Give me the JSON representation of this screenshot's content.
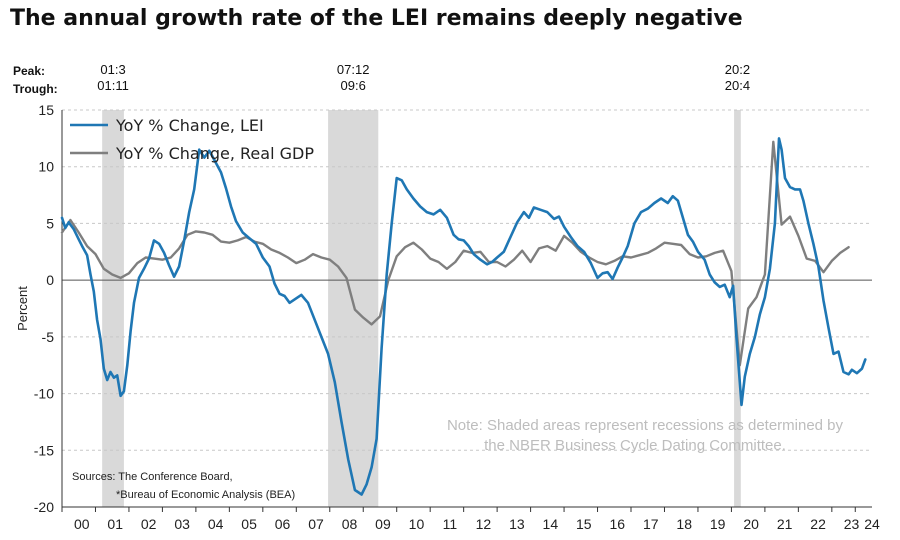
{
  "title": "The annual growth rate of the LEI remains deeply negative",
  "peak_label": "Peak:",
  "trough_label": "Trough:",
  "chart_data": {
    "type": "line",
    "title": "The annual growth rate of the LEI remains deeply negative",
    "ylabel": "Percent",
    "xlabel": "",
    "ylim": [
      -20,
      15
    ],
    "yticks": [
      15,
      10,
      5,
      0,
      -5,
      -10,
      -15,
      -20
    ],
    "xlim": [
      2000,
      2024.2
    ],
    "xticks": [
      {
        "x": 2000.5,
        "label": "00"
      },
      {
        "x": 2001.5,
        "label": "01"
      },
      {
        "x": 2002.5,
        "label": "02"
      },
      {
        "x": 2003.5,
        "label": "03"
      },
      {
        "x": 2004.5,
        "label": "04"
      },
      {
        "x": 2005.5,
        "label": "05"
      },
      {
        "x": 2006.5,
        "label": "06"
      },
      {
        "x": 2007.5,
        "label": "07"
      },
      {
        "x": 2008.5,
        "label": "08"
      },
      {
        "x": 2009.5,
        "label": "09"
      },
      {
        "x": 2010.5,
        "label": "10"
      },
      {
        "x": 2011.5,
        "label": "11"
      },
      {
        "x": 2012.5,
        "label": "12"
      },
      {
        "x": 2013.5,
        "label": "13"
      },
      {
        "x": 2014.5,
        "label": "14"
      },
      {
        "x": 2015.5,
        "label": "15"
      },
      {
        "x": 2016.5,
        "label": "16"
      },
      {
        "x": 2017.5,
        "label": "17"
      },
      {
        "x": 2018.5,
        "label": "18"
      },
      {
        "x": 2019.5,
        "label": "19"
      },
      {
        "x": 2020.5,
        "label": "20"
      },
      {
        "x": 2021.5,
        "label": "21"
      },
      {
        "x": 2022.5,
        "label": "22"
      },
      {
        "x": 2023.5,
        "label": "23"
      },
      {
        "x": 2024.2,
        "label": "24"
      }
    ],
    "recessions": [
      {
        "start": 2001.2,
        "end": 2001.85,
        "peak_label": "01:3",
        "trough_label": "01:11"
      },
      {
        "start": 2007.95,
        "end": 2009.45,
        "peak_label": "07:12",
        "trough_label": "09:6"
      },
      {
        "start": 2020.08,
        "end": 2020.28,
        "peak_label": "20:2",
        "trough_label": "20:4"
      }
    ],
    "series": [
      {
        "name": "YoY % Change, LEI",
        "color": "#1f77b4",
        "points": [
          [
            2000.0,
            5.5
          ],
          [
            2000.1,
            4.6
          ],
          [
            2000.2,
            5.1
          ],
          [
            2000.35,
            4.5
          ],
          [
            2000.5,
            3.6
          ],
          [
            2000.6,
            3.0
          ],
          [
            2000.75,
            2.2
          ],
          [
            2000.85,
            0.5
          ],
          [
            2000.95,
            -1.0
          ],
          [
            2001.05,
            -3.5
          ],
          [
            2001.15,
            -5.2
          ],
          [
            2001.25,
            -7.8
          ],
          [
            2001.35,
            -8.8
          ],
          [
            2001.45,
            -8.1
          ],
          [
            2001.55,
            -8.6
          ],
          [
            2001.65,
            -8.4
          ],
          [
            2001.75,
            -10.2
          ],
          [
            2001.85,
            -9.8
          ],
          [
            2001.95,
            -7.5
          ],
          [
            2002.05,
            -4.5
          ],
          [
            2002.15,
            -2.0
          ],
          [
            2002.3,
            0.2
          ],
          [
            2002.45,
            1.0
          ],
          [
            2002.6,
            1.9
          ],
          [
            2002.75,
            3.5
          ],
          [
            2002.9,
            3.2
          ],
          [
            2003.05,
            2.4
          ],
          [
            2003.2,
            1.3
          ],
          [
            2003.35,
            0.3
          ],
          [
            2003.5,
            1.2
          ],
          [
            2003.65,
            3.5
          ],
          [
            2003.8,
            6.0
          ],
          [
            2003.95,
            8.0
          ],
          [
            2004.1,
            11.5
          ],
          [
            2004.25,
            10.8
          ],
          [
            2004.4,
            11.4
          ],
          [
            2004.55,
            10.6
          ],
          [
            2004.75,
            9.5
          ],
          [
            2004.9,
            8.1
          ],
          [
            2005.05,
            6.5
          ],
          [
            2005.2,
            5.2
          ],
          [
            2005.4,
            4.2
          ],
          [
            2005.6,
            3.7
          ],
          [
            2005.8,
            3.2
          ],
          [
            2006.0,
            2.0
          ],
          [
            2006.2,
            1.2
          ],
          [
            2006.35,
            -0.3
          ],
          [
            2006.5,
            -1.2
          ],
          [
            2006.65,
            -1.4
          ],
          [
            2006.8,
            -2.0
          ],
          [
            2006.95,
            -1.7
          ],
          [
            2007.15,
            -1.3
          ],
          [
            2007.35,
            -2.0
          ],
          [
            2007.55,
            -3.5
          ],
          [
            2007.75,
            -5.0
          ],
          [
            2007.95,
            -6.5
          ],
          [
            2008.15,
            -9.0
          ],
          [
            2008.35,
            -12.5
          ],
          [
            2008.55,
            -15.8
          ],
          [
            2008.75,
            -18.5
          ],
          [
            2008.95,
            -18.9
          ],
          [
            2009.1,
            -18.0
          ],
          [
            2009.25,
            -16.5
          ],
          [
            2009.4,
            -14.0
          ],
          [
            2009.55,
            -6.0
          ],
          [
            2009.7,
            0.5
          ],
          [
            2009.85,
            5.0
          ],
          [
            2010.0,
            9.0
          ],
          [
            2010.15,
            8.8
          ],
          [
            2010.3,
            8.0
          ],
          [
            2010.5,
            7.2
          ],
          [
            2010.7,
            6.5
          ],
          [
            2010.9,
            6.0
          ],
          [
            2011.1,
            5.8
          ],
          [
            2011.3,
            6.2
          ],
          [
            2011.5,
            5.5
          ],
          [
            2011.7,
            4.0
          ],
          [
            2011.85,
            3.6
          ],
          [
            2012.0,
            3.5
          ],
          [
            2012.15,
            3.0
          ],
          [
            2012.3,
            2.3
          ],
          [
            2012.5,
            1.8
          ],
          [
            2012.7,
            1.4
          ],
          [
            2012.85,
            1.6
          ],
          [
            2013.0,
            2.0
          ],
          [
            2013.2,
            2.5
          ],
          [
            2013.4,
            3.8
          ],
          [
            2013.6,
            5.1
          ],
          [
            2013.8,
            6.0
          ],
          [
            2013.95,
            5.5
          ],
          [
            2014.1,
            6.4
          ],
          [
            2014.3,
            6.2
          ],
          [
            2014.5,
            6.0
          ],
          [
            2014.7,
            5.4
          ],
          [
            2014.85,
            5.6
          ],
          [
            2015.0,
            4.7
          ],
          [
            2015.2,
            3.8
          ],
          [
            2015.4,
            3.0
          ],
          [
            2015.6,
            2.5
          ],
          [
            2015.8,
            1.5
          ],
          [
            2016.0,
            0.2
          ],
          [
            2016.15,
            0.6
          ],
          [
            2016.3,
            0.7
          ],
          [
            2016.45,
            0.1
          ],
          [
            2016.6,
            1.1
          ],
          [
            2016.75,
            2.0
          ],
          [
            2016.9,
            3.0
          ],
          [
            2017.1,
            5.0
          ],
          [
            2017.3,
            6.0
          ],
          [
            2017.5,
            6.3
          ],
          [
            2017.7,
            6.8
          ],
          [
            2017.9,
            7.2
          ],
          [
            2018.1,
            6.8
          ],
          [
            2018.25,
            7.4
          ],
          [
            2018.4,
            7.0
          ],
          [
            2018.55,
            5.5
          ],
          [
            2018.7,
            4.0
          ],
          [
            2018.85,
            3.4
          ],
          [
            2019.0,
            2.5
          ],
          [
            2019.2,
            1.8
          ],
          [
            2019.35,
            0.5
          ],
          [
            2019.5,
            -0.2
          ],
          [
            2019.65,
            -0.6
          ],
          [
            2019.8,
            -0.4
          ],
          [
            2019.95,
            -1.5
          ],
          [
            2020.05,
            -0.5
          ],
          [
            2020.15,
            -5.0
          ],
          [
            2020.3,
            -11.0
          ],
          [
            2020.4,
            -8.5
          ],
          [
            2020.55,
            -6.5
          ],
          [
            2020.7,
            -5.0
          ],
          [
            2020.85,
            -3.0
          ],
          [
            2021.0,
            -1.5
          ],
          [
            2021.15,
            1.0
          ],
          [
            2021.3,
            5.0
          ],
          [
            2021.42,
            12.5
          ],
          [
            2021.5,
            11.5
          ],
          [
            2021.6,
            9.0
          ],
          [
            2021.75,
            8.2
          ],
          [
            2021.9,
            8.0
          ],
          [
            2022.05,
            8.0
          ],
          [
            2022.15,
            7.0
          ],
          [
            2022.3,
            5.0
          ],
          [
            2022.45,
            3.2
          ],
          [
            2022.6,
            1.2
          ],
          [
            2022.75,
            -1.8
          ],
          [
            2022.9,
            -4.2
          ],
          [
            2023.05,
            -6.5
          ],
          [
            2023.2,
            -6.3
          ],
          [
            2023.35,
            -8.1
          ],
          [
            2023.5,
            -8.3
          ],
          [
            2023.6,
            -7.9
          ],
          [
            2023.75,
            -8.2
          ],
          [
            2023.9,
            -7.8
          ],
          [
            2024.0,
            -7.0
          ]
        ]
      },
      {
        "name": "YoY % Change, Real GDP",
        "color": "#7f7f7f",
        "points": [
          [
            2000.0,
            4.2
          ],
          [
            2000.25,
            5.3
          ],
          [
            2000.5,
            4.2
          ],
          [
            2000.75,
            3.0
          ],
          [
            2001.0,
            2.3
          ],
          [
            2001.25,
            1.0
          ],
          [
            2001.5,
            0.5
          ],
          [
            2001.75,
            0.2
          ],
          [
            2002.0,
            0.6
          ],
          [
            2002.25,
            1.5
          ],
          [
            2002.5,
            2.0
          ],
          [
            2002.75,
            1.9
          ],
          [
            2003.0,
            1.8
          ],
          [
            2003.25,
            2.0
          ],
          [
            2003.5,
            2.8
          ],
          [
            2003.75,
            4.0
          ],
          [
            2004.0,
            4.3
          ],
          [
            2004.25,
            4.2
          ],
          [
            2004.5,
            4.0
          ],
          [
            2004.75,
            3.4
          ],
          [
            2005.0,
            3.3
          ],
          [
            2005.25,
            3.5
          ],
          [
            2005.5,
            3.8
          ],
          [
            2005.75,
            3.4
          ],
          [
            2006.0,
            3.2
          ],
          [
            2006.25,
            2.7
          ],
          [
            2006.5,
            2.4
          ],
          [
            2006.75,
            2.0
          ],
          [
            2007.0,
            1.5
          ],
          [
            2007.25,
            1.8
          ],
          [
            2007.5,
            2.3
          ],
          [
            2007.75,
            2.0
          ],
          [
            2008.0,
            1.8
          ],
          [
            2008.25,
            1.2
          ],
          [
            2008.5,
            0.2
          ],
          [
            2008.75,
            -2.6
          ],
          [
            2009.0,
            -3.3
          ],
          [
            2009.25,
            -3.9
          ],
          [
            2009.5,
            -3.2
          ],
          [
            2009.75,
            0.0
          ],
          [
            2010.0,
            2.1
          ],
          [
            2010.25,
            2.9
          ],
          [
            2010.5,
            3.3
          ],
          [
            2010.75,
            2.7
          ],
          [
            2011.0,
            1.9
          ],
          [
            2011.25,
            1.6
          ],
          [
            2011.5,
            1.0
          ],
          [
            2011.75,
            1.6
          ],
          [
            2012.0,
            2.6
          ],
          [
            2012.25,
            2.4
          ],
          [
            2012.5,
            2.5
          ],
          [
            2012.75,
            1.6
          ],
          [
            2013.0,
            1.6
          ],
          [
            2013.25,
            1.2
          ],
          [
            2013.5,
            1.8
          ],
          [
            2013.75,
            2.6
          ],
          [
            2014.0,
            1.6
          ],
          [
            2014.25,
            2.8
          ],
          [
            2014.5,
            3.0
          ],
          [
            2014.75,
            2.6
          ],
          [
            2015.0,
            3.9
          ],
          [
            2015.25,
            3.3
          ],
          [
            2015.5,
            2.5
          ],
          [
            2015.75,
            2.0
          ],
          [
            2016.0,
            1.6
          ],
          [
            2016.25,
            1.4
          ],
          [
            2016.5,
            1.7
          ],
          [
            2016.75,
            2.1
          ],
          [
            2017.0,
            2.0
          ],
          [
            2017.25,
            2.2
          ],
          [
            2017.5,
            2.4
          ],
          [
            2017.75,
            2.8
          ],
          [
            2018.0,
            3.3
          ],
          [
            2018.25,
            3.2
          ],
          [
            2018.5,
            3.1
          ],
          [
            2018.75,
            2.3
          ],
          [
            2019.0,
            2.0
          ],
          [
            2019.25,
            2.1
          ],
          [
            2019.5,
            2.4
          ],
          [
            2019.75,
            2.6
          ],
          [
            2020.0,
            0.8
          ],
          [
            2020.25,
            -7.5
          ],
          [
            2020.5,
            -2.5
          ],
          [
            2020.75,
            -1.5
          ],
          [
            2021.0,
            0.5
          ],
          [
            2021.25,
            12.2
          ],
          [
            2021.5,
            4.9
          ],
          [
            2021.75,
            5.6
          ],
          [
            2022.0,
            3.9
          ],
          [
            2022.25,
            1.9
          ],
          [
            2022.5,
            1.7
          ],
          [
            2022.75,
            0.7
          ],
          [
            2023.0,
            1.7
          ],
          [
            2023.25,
            2.4
          ],
          [
            2023.5,
            2.9
          ]
        ]
      }
    ],
    "legend": [
      "YoY % Change, LEI",
      "YoY % Change, Real GDP"
    ],
    "legend_position": "top-left",
    "annotations": {
      "note_line1": "Note: Shaded areas represent recessions as determined by",
      "note_line2": "the NBER Business Cycle Dating Committee.",
      "source_line1": "Sources: The Conference Board,",
      "source_line2": "*Bureau of Economic Analysis (BEA)"
    },
    "grid": true
  }
}
